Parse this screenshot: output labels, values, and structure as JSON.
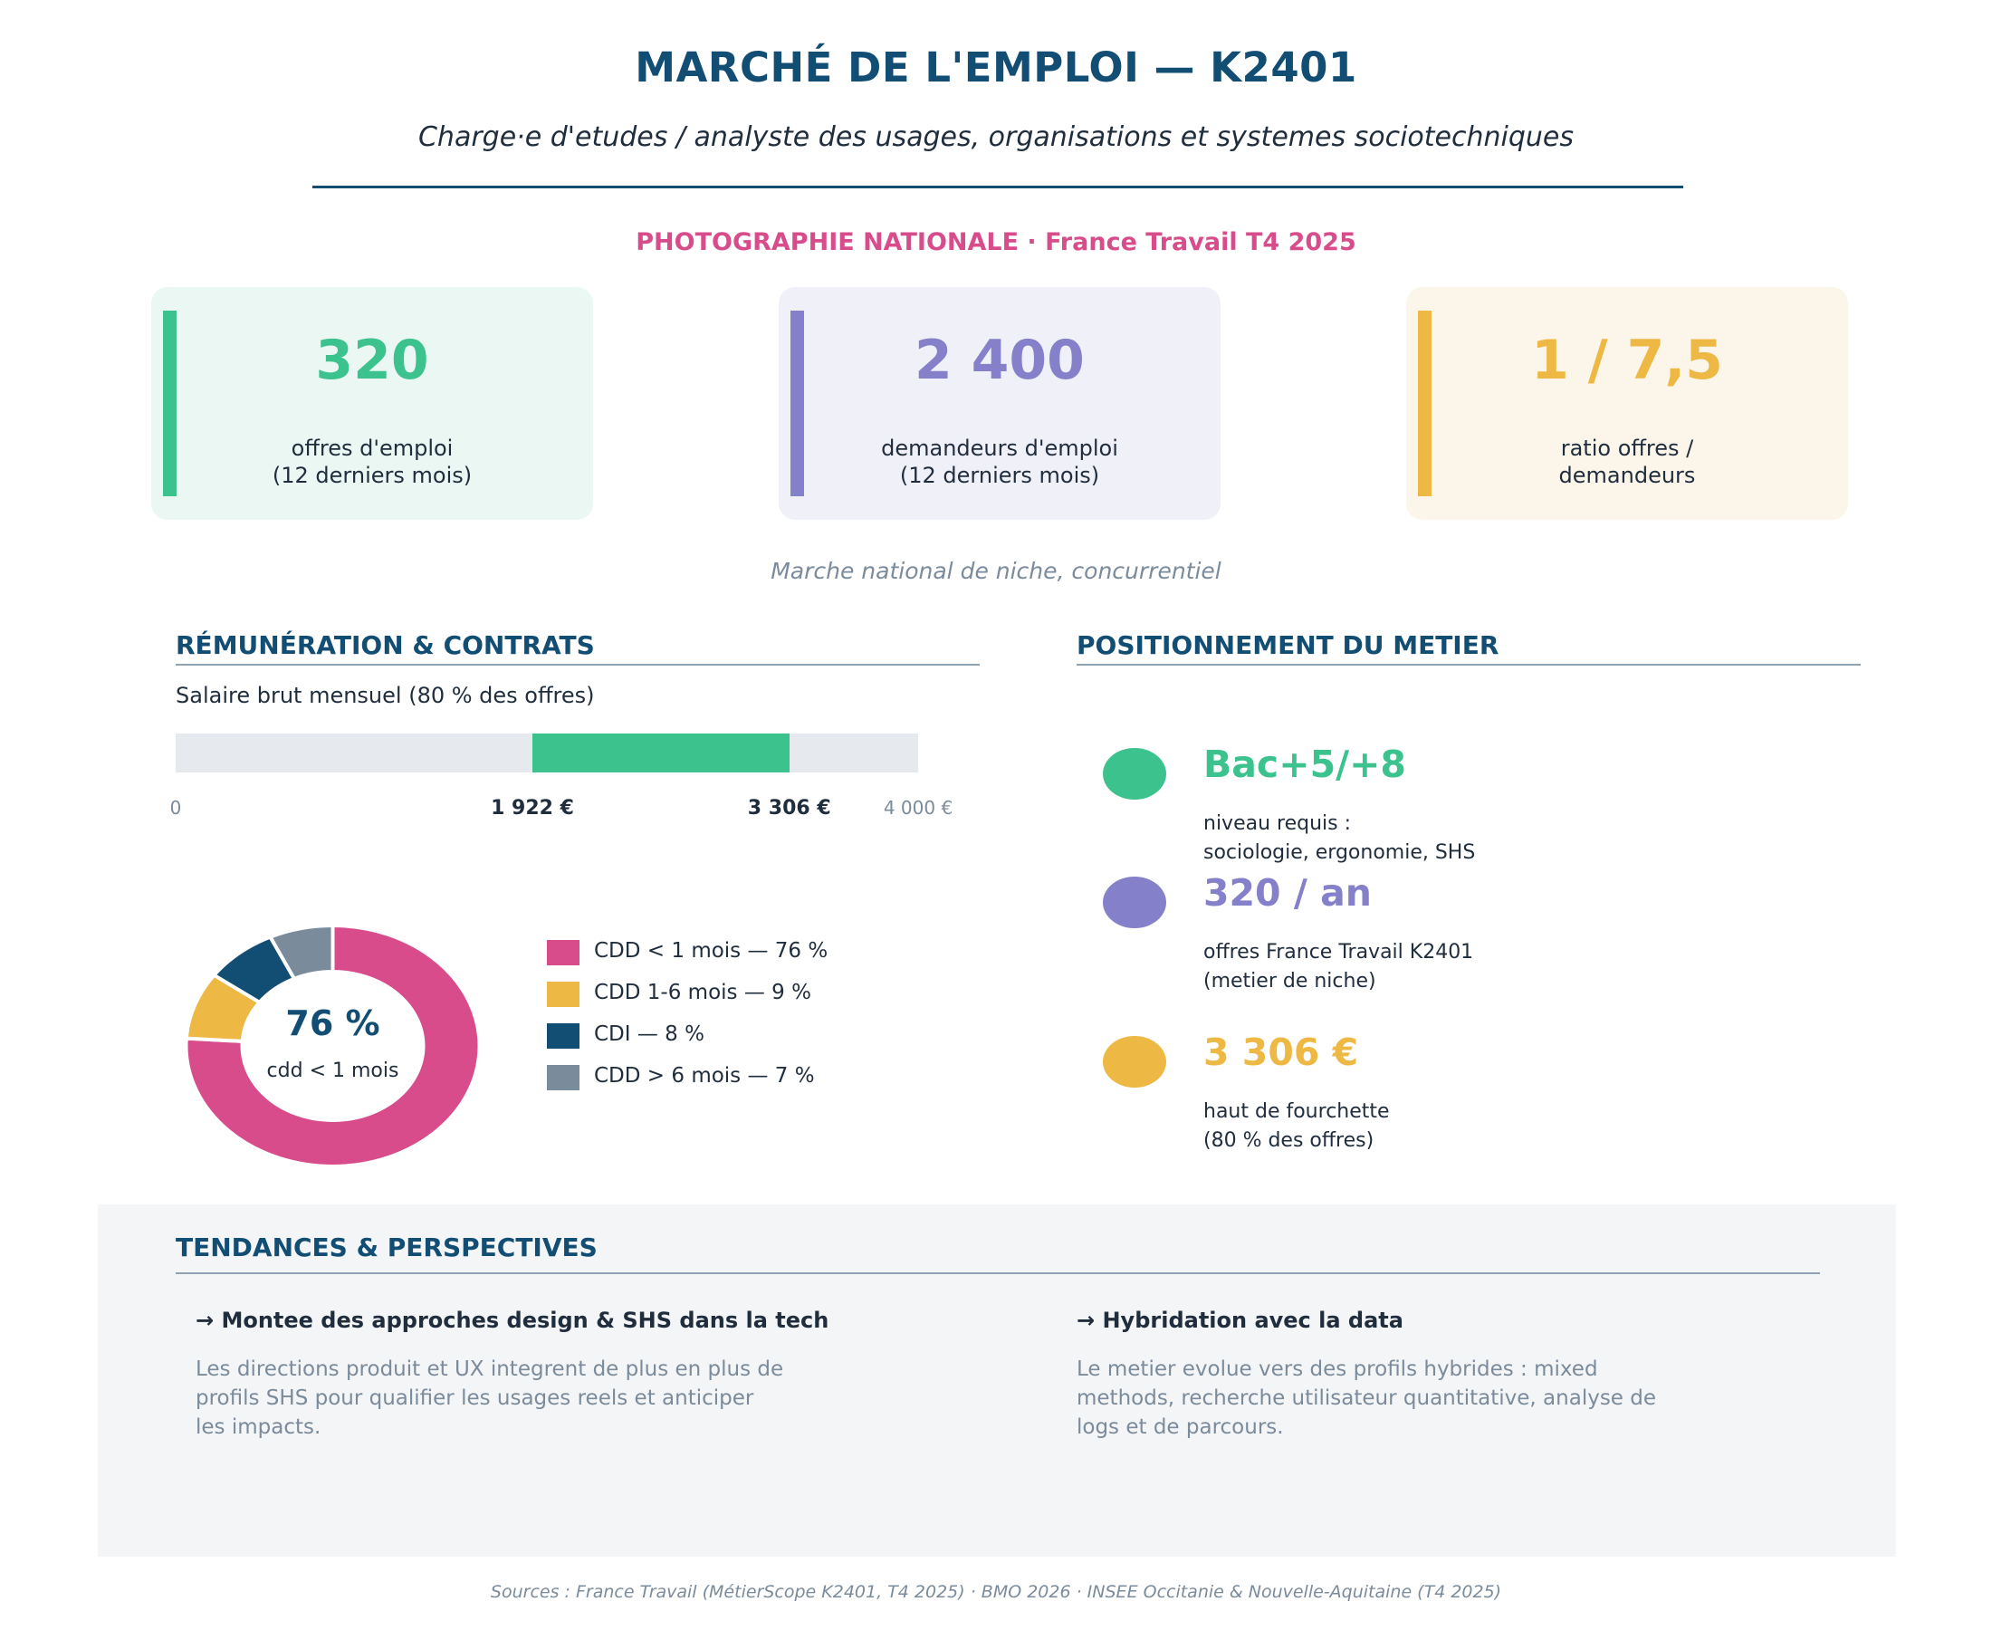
{
  "header": {
    "title": "MARCHÉ DE L'EMPLOI — K2401",
    "subtitle": "Charge·e d'etudes / analyste des usages, organisations et systemes sociotechniques",
    "kicker": "PHOTOGRAPHIE NATIONALE  ·  France Travail T4 2025"
  },
  "kpis": [
    {
      "value": "320",
      "label_line1": "offres d'emploi",
      "label_line2": "(12 derniers mois)",
      "color": "#3cc28c",
      "bg": "#eaf7f2"
    },
    {
      "value": "2 400",
      "label_line1": "demandeurs d'emploi",
      "label_line2": "(12 derniers mois)",
      "color": "#8480c9",
      "bg": "#f0f0f9"
    },
    {
      "value": "1 / 7,5",
      "label_line1": "ratio offres /",
      "label_line2": "demandeurs",
      "color": "#eeb844",
      "bg": "#fcf6ea"
    }
  ],
  "kpi_note": "Marche national de niche, concurrentiel",
  "remuneration": {
    "section_title": "RÉMUNÉRATION & CONTRATS",
    "salary_label": "Salaire brut mensuel (80 % des offres)",
    "axis_min_label": "0",
    "axis_max_label": "4 000 €",
    "low_label": "1 922 €",
    "high_label": "3 306 €"
  },
  "donut": {
    "center_value": "76 %",
    "center_label": "cdd < 1 mois",
    "legend": [
      "CDD < 1 mois — 76 %",
      "CDD 1-6 mois — 9 %",
      "CDI — 8 %",
      "CDD > 6 mois — 7 %"
    ]
  },
  "positionnement": {
    "section_title": "POSITIONNEMENT DU METIER",
    "items": [
      {
        "value": "Bac+5/+8",
        "desc_line1": "niveau requis :",
        "desc_line2": "sociologie, ergonomie, SHS",
        "color": "#3cc28c"
      },
      {
        "value": "320 / an",
        "desc_line1": "offres France Travail K2401",
        "desc_line2": "(metier de niche)",
        "color": "#8480c9"
      },
      {
        "value": "3 306 €",
        "desc_line1": "haut de fourchette",
        "desc_line2": "(80 % des offres)",
        "color": "#eeb844"
      }
    ]
  },
  "tendances": {
    "section_title": "TENDANCES & PERSPECTIVES",
    "items": [
      {
        "heading": "→ Montee des approches design & SHS dans la tech",
        "body_line1": "Les directions produit et UX integrent de plus en plus de",
        "body_line2": "profils SHS pour qualifier les usages reels et anticiper",
        "body_line3": "les impacts."
      },
      {
        "heading": "→ Hybridation avec la data",
        "body_line1": "Le metier evolue vers des profils hybrides : mixed",
        "body_line2": "methods, recherche utilisateur quantitative, analyse de",
        "body_line3": "logs et de parcours."
      }
    ]
  },
  "sources": "Sources : France Travail (MétierScope K2401, T4 2025) · BMO 2026 · INSEE Occitanie & Nouvelle-Aquitaine (T4 2025)",
  "chart_data": [
    {
      "type": "bar",
      "title": "Salaire brut mensuel (80 % des offres)",
      "unit": "€",
      "xlim": [
        0,
        4000
      ],
      "range": {
        "low": 1922,
        "high": 3306
      }
    },
    {
      "type": "pie",
      "categories": [
        "CDD < 1 mois",
        "CDD 1-6 mois",
        "CDI",
        "CDD > 6 mois"
      ],
      "values": [
        76,
        9,
        8,
        7
      ],
      "colors": [
        "#d94c8c",
        "#eeb844",
        "#124d73",
        "#7a8b9c"
      ],
      "donut": true
    }
  ]
}
